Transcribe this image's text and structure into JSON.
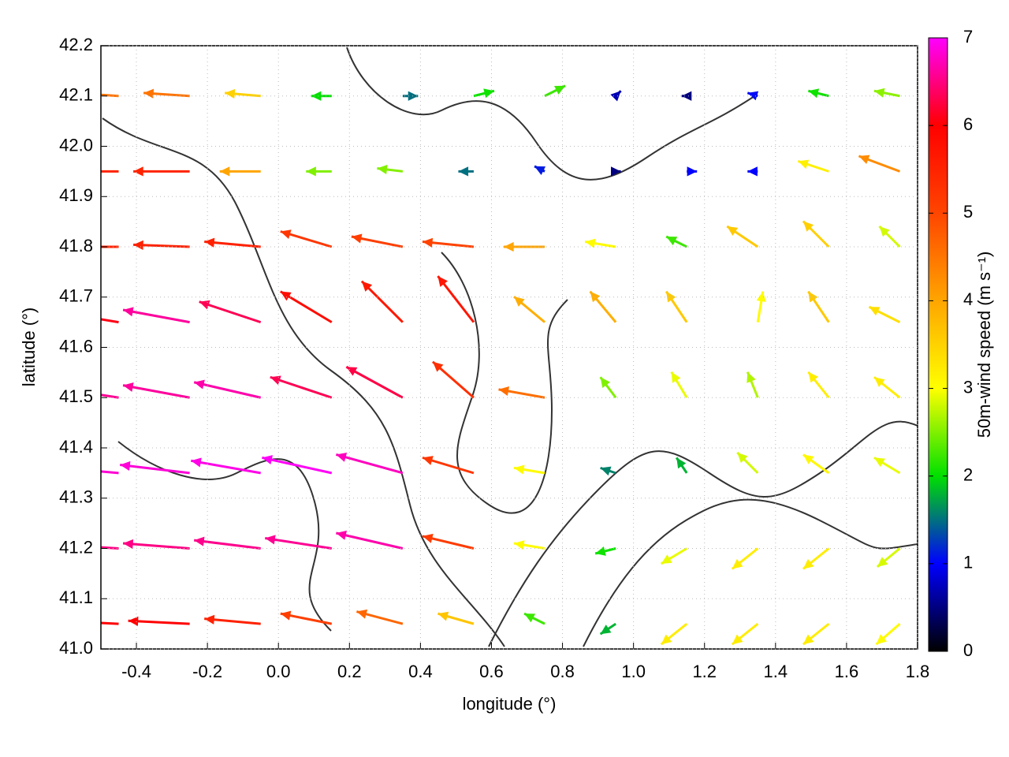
{
  "chart_data": {
    "type": "quiver",
    "xlabel": "longitude (°)",
    "ylabel": "latitude (°)",
    "xlim": [
      -0.5,
      1.8
    ],
    "ylim": [
      41.0,
      42.2
    ],
    "xticks": [
      -0.4,
      -0.2,
      {
        "value": 0,
        "label": "0.0"
      },
      0.2,
      0.4,
      0.6,
      0.8,
      {
        "value": 1,
        "label": "1.0"
      },
      1.2,
      1.4,
      1.6,
      1.8
    ],
    "yticks": [
      {
        "value": 41,
        "label": "41.0"
      },
      41.1,
      41.2,
      41.3,
      41.4,
      41.5,
      41.6,
      41.7,
      41.8,
      41.9,
      {
        "value": 42,
        "label": "42.0"
      },
      42.1,
      42.2
    ],
    "grid": true,
    "colorbar": {
      "label": "50m-wind speed (m s⁻¹)",
      "clim": [
        0,
        7
      ],
      "ticks": [
        0,
        1,
        2,
        3,
        4,
        5,
        6,
        7
      ],
      "colormap": [
        "#000000",
        "#0000ff",
        "#00e000",
        "#ffff00",
        "#ffa500",
        "#ff4500",
        "#ff0000",
        "#ff00ff"
      ]
    },
    "x": [
      -0.45,
      -0.25,
      -0.05,
      0.15,
      0.35,
      0.55,
      0.75,
      0.95,
      1.15,
      1.35,
      1.55,
      1.75,
      -0.45,
      -0.25,
      -0.05,
      0.15,
      0.35,
      0.55,
      0.75,
      0.95,
      1.15,
      1.35,
      1.55,
      1.75,
      -0.45,
      -0.25,
      -0.05,
      0.15,
      0.35,
      0.55,
      0.75,
      0.95,
      1.15,
      1.35,
      1.55,
      1.75,
      -0.45,
      -0.25,
      -0.05,
      0.15,
      0.35,
      0.55,
      0.75,
      0.95,
      1.15,
      1.35,
      1.55,
      1.75,
      -0.45,
      -0.25,
      -0.05,
      0.15,
      0.35,
      0.55,
      0.75,
      0.95,
      1.15,
      1.35,
      1.55,
      1.75,
      -0.45,
      -0.25,
      -0.05,
      0.15,
      0.35,
      0.55,
      0.75,
      0.95,
      1.15,
      1.35,
      1.55,
      1.75,
      -0.45,
      -0.25,
      -0.05,
      0.15,
      0.35,
      0.55,
      0.75,
      0.95,
      1.15,
      1.35,
      1.55,
      1.75,
      -0.45,
      -0.25,
      -0.05,
      0.15,
      0.35,
      0.55,
      0.75,
      0.95,
      1.15,
      1.35,
      1.55,
      1.75
    ],
    "y": [
      41.05,
      41.05,
      41.05,
      41.05,
      41.05,
      41.05,
      41.05,
      41.05,
      41.05,
      41.05,
      41.05,
      41.05,
      41.2,
      41.2,
      41.2,
      41.2,
      41.2,
      41.2,
      41.2,
      41.2,
      41.2,
      41.2,
      41.2,
      41.2,
      41.35,
      41.35,
      41.35,
      41.35,
      41.35,
      41.35,
      41.35,
      41.35,
      41.35,
      41.35,
      41.35,
      41.35,
      41.5,
      41.5,
      41.5,
      41.5,
      41.5,
      41.5,
      41.5,
      41.5,
      41.5,
      41.5,
      41.5,
      41.5,
      41.65,
      41.65,
      41.65,
      41.65,
      41.65,
      41.65,
      41.65,
      41.65,
      41.65,
      41.65,
      41.65,
      41.65,
      41.8,
      41.8,
      41.8,
      41.8,
      41.8,
      41.8,
      41.8,
      41.8,
      41.8,
      41.8,
      41.8,
      41.8,
      41.95,
      41.95,
      41.95,
      41.95,
      41.95,
      41.95,
      41.95,
      41.95,
      41.95,
      41.95,
      41.95,
      41.95,
      42.1,
      42.1,
      42.1,
      42.1,
      42.1,
      42.1,
      42.1,
      42.1,
      42.1,
      42.1,
      42.1,
      42.1
    ],
    "u": [
      -6,
      -6,
      -5.5,
      -5,
      -4.5,
      -3.5,
      -2,
      -1.5,
      -2.5,
      -2.5,
      -2.5,
      -2.3,
      -6.5,
      -6.5,
      -6.5,
      -6.5,
      -6.5,
      -5,
      -3,
      -2,
      -2.5,
      -2.5,
      -2.5,
      -2.2,
      -6.8,
      -6.8,
      -6.8,
      -6.8,
      -6.5,
      -5,
      -3,
      -1.5,
      -1,
      -2,
      -2.5,
      -2.5,
      -6.5,
      -6.5,
      -6.5,
      -6,
      -5.5,
      -4,
      -4.5,
      -1.5,
      -1.5,
      -1,
      -2,
      -2.5,
      -6,
      -6.5,
      -6,
      -5,
      -4,
      -3.5,
      -3,
      -2.5,
      -2,
      0.5,
      -2,
      -3,
      -5.5,
      -5.5,
      -5.5,
      -5,
      -5,
      -5,
      -4,
      -3,
      -2,
      -3,
      -2.5,
      -2,
      -5.5,
      -5.5,
      -4,
      -2.5,
      -2.5,
      -1.5,
      -1,
      0.5,
      1,
      -1,
      -3,
      -4,
      -4.5,
      -4.5,
      -3.5,
      -2,
      1.5,
      2,
      2,
      0.5,
      -0.5,
      -1,
      -2,
      -2.5
    ],
    "v": [
      0.3,
      0.3,
      0.5,
      1,
      1.2,
      1,
      1,
      -1,
      -2,
      -2,
      -2,
      -2,
      0.4,
      0.5,
      0.8,
      1,
      1.5,
      1.2,
      0.5,
      -0.5,
      -1.5,
      -2,
      -2,
      -1.8,
      0.6,
      0.8,
      1.2,
      1.5,
      1.8,
      1.5,
      0.5,
      0.5,
      1.5,
      2,
      1.8,
      1.5,
      1,
      1.2,
      1.5,
      2,
      3,
      3.5,
      0.8,
      2,
      2.5,
      2.5,
      2.5,
      2,
      1,
      1.2,
      2,
      3,
      4,
      4.5,
      2.5,
      3,
      3,
      3,
      3,
      1.5,
      0,
      0.2,
      0.5,
      1.5,
      1,
      0.5,
      0,
      0.5,
      1,
      2,
      2.5,
      2,
      0,
      0,
      0,
      0,
      0.3,
      0,
      0.5,
      0,
      0,
      0,
      1,
      1.5,
      0.3,
      0.3,
      0.3,
      0,
      0,
      0.5,
      1,
      0.5,
      0,
      0.3,
      0.5,
      0.5
    ]
  }
}
